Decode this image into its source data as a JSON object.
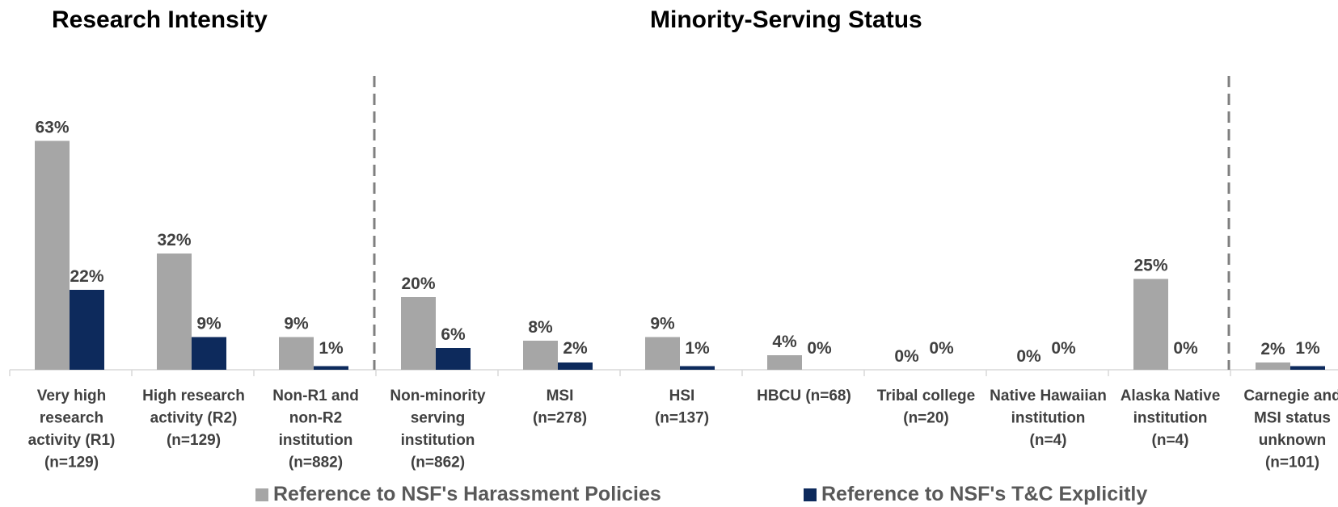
{
  "section_titles": {
    "research_intensity": "Research Intensity",
    "minority_serving_status": "Minority-Serving Status"
  },
  "legend": {
    "harassment": "Reference to NSF's Harassment Policies",
    "tc": "Reference to NSF's T&C Explicitly"
  },
  "colors": {
    "harassment": "#a6a6a6",
    "tc": "#0d2a5c",
    "text": "#404040",
    "divider": "#7f7f7f"
  },
  "chart_data": {
    "type": "bar",
    "title": "",
    "xlabel": "",
    "ylabel": "",
    "ylim": [
      0,
      80
    ],
    "grid": false,
    "legend_position": "bottom",
    "categories": [
      [
        "Very high",
        "research",
        "activity (R1)",
        "(n=129)"
      ],
      [
        "High research",
        "activity (R2)",
        "(n=129)"
      ],
      [
        "Non-R1 and",
        "non-R2",
        "institution",
        "(n=882)"
      ],
      [
        "Non-minority",
        "serving",
        "institution",
        "(n=862)"
      ],
      [
        "MSI",
        "(n=278)"
      ],
      [
        "HSI",
        "(n=137)"
      ],
      [
        "HBCU (n=68)"
      ],
      [
        "Tribal college",
        "(n=20)"
      ],
      [
        "Native Hawaiian",
        "institution",
        "(n=4)"
      ],
      [
        "Alaska Native",
        "institution",
        "(n=4)"
      ],
      [
        "Carnegie and",
        "MSI status",
        "unknown",
        "(n=101)"
      ]
    ],
    "series": [
      {
        "name": "Reference to NSF's Harassment Policies",
        "values": [
          63,
          32,
          9,
          20,
          8,
          9,
          4,
          0,
          0,
          25,
          2
        ],
        "labels": [
          "63%",
          "32%",
          "9%",
          "20%",
          "8%",
          "9%",
          "4%",
          "0%",
          "0%",
          "25%",
          "2%"
        ]
      },
      {
        "name": "Reference to NSF's T&C Explicitly",
        "values": [
          22,
          9,
          1,
          6,
          2,
          1,
          0,
          0,
          0,
          0,
          1
        ],
        "labels": [
          "22%",
          "9%",
          "1%",
          "6%",
          "2%",
          "1%",
          "0%",
          "0%",
          "0%",
          "0%",
          "1%"
        ]
      }
    ],
    "group_dividers_after": [
      2,
      9
    ]
  }
}
